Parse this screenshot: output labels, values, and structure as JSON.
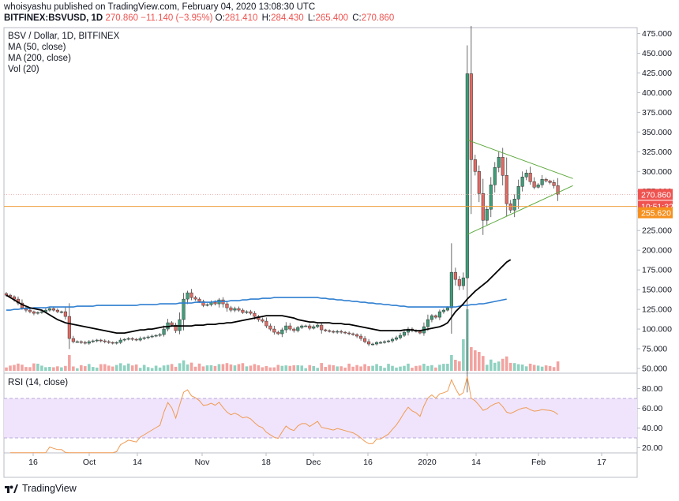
{
  "header": {
    "publish_line": "whoisyashu published on TradingView.com, February 04, 2020 13:08:30 UTC",
    "symbol": "BITFINEX:BSVUSD, 1D",
    "last": "270.860",
    "change": "−11.140 (−3.95%)",
    "o_label": "O:",
    "o_value": "281.410",
    "h_label": "H:",
    "h_value": "284.430",
    "l_label": "L:",
    "l_value": "265.400",
    "c_label": "C:",
    "c_value": "270.860"
  },
  "legend": {
    "title": "BSV / Dollar, 1D, BITFINEX",
    "ma50": "MA (50, close)",
    "ma200": "MA (200, close)",
    "vol": "Vol (20)"
  },
  "rsi_legend": "RSI (14, close)",
  "price_tags": {
    "last": "270.860",
    "countdown": "10:51:32",
    "line_level": "255.620"
  },
  "colors": {
    "up": "#3f9e7a",
    "down": "#e06b65",
    "vol_up": "#8fd1c0",
    "vol_down": "#f2a3a0",
    "ma50": "#000000",
    "ma200": "#2f7fd0",
    "rsi": "#f19a52",
    "rsi_band": "#efe4fb",
    "triangle": "#5aa83a",
    "level_line": "#f0a040"
  },
  "brand": "TradingView",
  "chart_data": {
    "type": "candlestick",
    "price_axis_ticks": [
      "475.000",
      "450.000",
      "425.000",
      "400.000",
      "375.000",
      "350.000",
      "325.000",
      "300.000",
      "275.000",
      "250.000",
      "225.000",
      "200.000",
      "175.000",
      "150.000",
      "125.000",
      "100.000",
      "75.000",
      "50.000"
    ],
    "rsi_axis_ticks": [
      "80.00",
      "60.00",
      "40.00",
      "20.00"
    ],
    "time_axis_ticks": [
      "16",
      "Oct",
      "14",
      "Nov",
      "18",
      "Dec",
      "16",
      "2020",
      "14",
      "Feb",
      "17"
    ],
    "rsi_band": [
      30,
      70
    ],
    "price_range": [
      45,
      480
    ],
    "close": [
      143,
      141,
      138,
      133,
      127,
      124,
      122,
      120,
      121,
      122,
      124,
      126,
      124,
      122,
      122,
      116,
      88,
      84,
      84,
      83,
      82,
      84,
      85,
      86,
      85,
      84,
      83,
      82,
      83,
      86,
      87,
      88,
      87,
      86,
      88,
      89,
      90,
      91,
      92,
      93,
      100,
      108,
      105,
      98,
      112,
      138,
      146,
      140,
      138,
      135,
      130,
      131,
      134,
      132,
      137,
      132,
      127,
      124,
      126,
      124,
      121,
      122,
      120,
      116,
      112,
      110,
      104,
      100,
      96,
      94,
      99,
      104,
      100,
      98,
      102,
      104,
      104,
      101,
      103,
      105,
      99,
      98,
      97,
      96,
      97,
      96,
      95,
      94,
      93,
      91,
      88,
      84,
      81,
      81,
      83,
      83,
      84,
      85,
      87,
      89,
      92,
      96,
      100,
      98,
      97,
      95,
      103,
      112,
      117,
      115,
      122,
      124,
      127,
      172,
      163,
      155,
      165,
      424,
      315,
      300,
      272,
      238,
      252,
      283,
      305,
      318,
      295,
      259,
      251,
      265,
      281,
      293,
      298,
      287,
      280,
      283,
      290,
      288,
      286,
      282,
      271
    ],
    "ma50": [
      143,
      140,
      137,
      134,
      131,
      129,
      127,
      126,
      125,
      124,
      121,
      118,
      115,
      112,
      110,
      108,
      107,
      106,
      105,
      104,
      103,
      102,
      101,
      100,
      99,
      98,
      97,
      96,
      95,
      95,
      95,
      96,
      97,
      98,
      99,
      99,
      100,
      100,
      101,
      102,
      103,
      103,
      104,
      104,
      104,
      104,
      104,
      104,
      105,
      105,
      105,
      106,
      106,
      106,
      107,
      107,
      108,
      108,
      109,
      110,
      111,
      112,
      113,
      114,
      115,
      116,
      117,
      117,
      117,
      117,
      117,
      116,
      115,
      114,
      112,
      111,
      110,
      109,
      109,
      108,
      108,
      108,
      108,
      107,
      107,
      107,
      106,
      106,
      105,
      104,
      103,
      102,
      101,
      100,
      99,
      98,
      98,
      98,
      98,
      98,
      98,
      99,
      99,
      99,
      98,
      98,
      99,
      100,
      101,
      102,
      103,
      105,
      108,
      115,
      122,
      127,
      132,
      138,
      143,
      148,
      152,
      156,
      160,
      165,
      170,
      175,
      180,
      185,
      188
    ],
    "ma200": [
      124,
      124,
      125,
      125,
      126,
      126,
      126,
      127,
      127,
      127,
      127,
      128,
      128,
      128,
      128,
      128,
      128,
      128,
      129,
      129,
      129,
      129,
      129,
      130,
      130,
      130,
      130,
      130,
      130,
      130,
      130,
      130,
      130,
      130,
      131,
      131,
      131,
      131,
      131,
      132,
      132,
      132,
      132,
      132,
      133,
      133,
      133,
      133,
      134,
      134,
      134,
      134,
      134,
      135,
      135,
      135,
      135,
      136,
      136,
      136,
      137,
      137,
      138,
      138,
      138,
      139,
      139,
      139,
      140,
      140,
      140,
      140,
      140,
      140,
      140,
      140,
      140,
      140,
      140,
      140,
      139,
      139,
      138,
      138,
      137,
      137,
      136,
      136,
      135,
      135,
      134,
      134,
      133,
      133,
      132,
      132,
      131,
      131,
      130,
      130,
      129,
      129,
      128,
      128,
      128,
      128,
      128,
      128,
      128,
      128,
      128,
      128,
      128,
      128,
      128,
      129,
      130,
      130,
      131,
      131,
      132,
      132,
      133,
      134,
      135,
      136,
      137,
      138
    ],
    "triangle": {
      "upper": [
        [
          117,
          340
        ],
        [
          140,
          291
        ]
      ],
      "lower": [
        [
          117,
          220
        ],
        [
          140,
          282
        ]
      ]
    },
    "level_line": 255.62,
    "last_price": 270.86
  }
}
